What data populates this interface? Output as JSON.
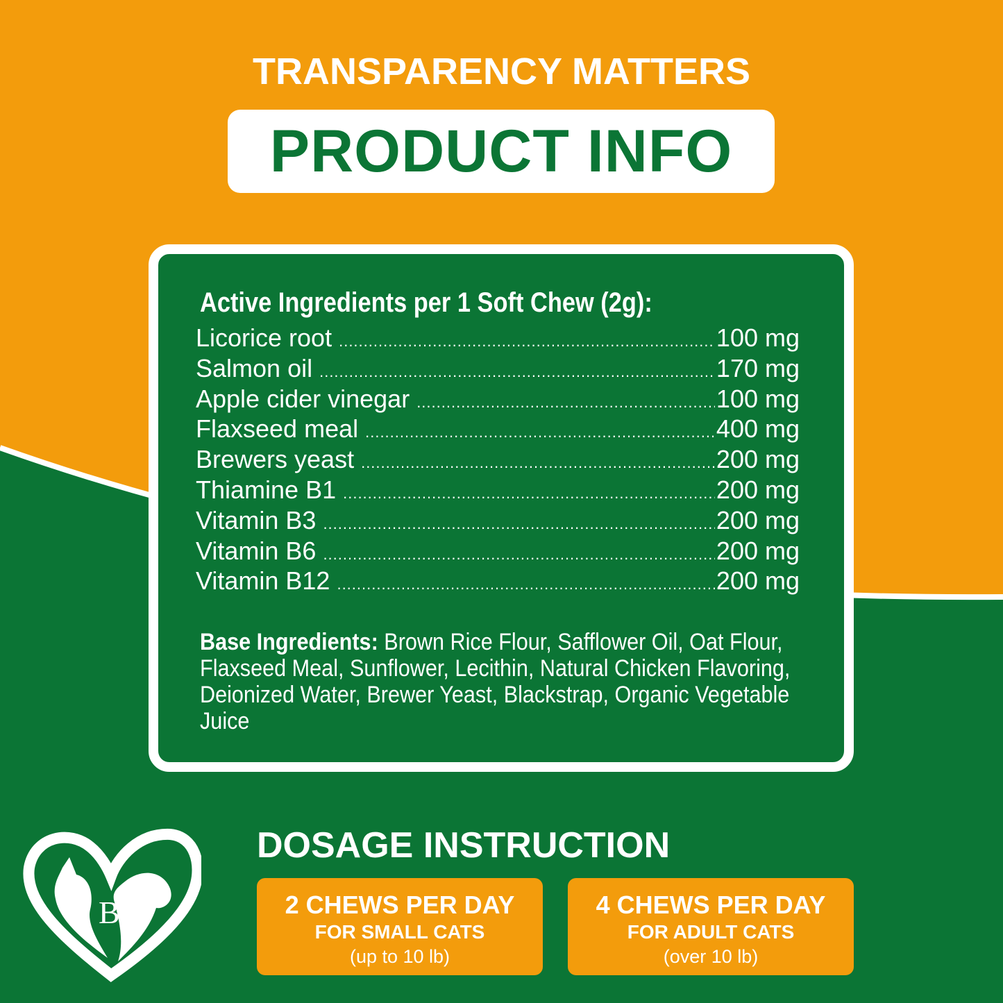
{
  "colors": {
    "orange": "#F39C0C",
    "green": "#0B7535",
    "white": "#FFFFFF"
  },
  "header": {
    "eyebrow": "TRANSPARENCY MATTERS",
    "title": "PRODUCT INFO"
  },
  "ingredients": {
    "heading": "Active Ingredients per 1 Soft Chew (2g):",
    "items": [
      {
        "name": "Licorice root",
        "amount": "100 mg"
      },
      {
        "name": "Salmon oil",
        "amount": "170 mg"
      },
      {
        "name": "Apple cider vinegar",
        "amount": "100 mg"
      },
      {
        "name": "Flaxseed meal",
        "amount": "400 mg"
      },
      {
        "name": "Brewers yeast",
        "amount": "200 mg"
      },
      {
        "name": "Thiamine B1",
        "amount": "200 mg"
      },
      {
        "name": "Vitamin B3",
        "amount": "200 mg"
      },
      {
        "name": "Vitamin B6",
        "amount": "200 mg"
      },
      {
        "name": "Vitamin B12",
        "amount": "200 mg"
      }
    ],
    "base_label": "Base Ingredients:",
    "base_text": "Brown Rice Flour, Safflower Oil, Oat Flour, Flaxseed Meal, Sunflower, Lecithin, Natural Chicken Flavoring, Deionized Water, Brewer Yeast, Blackstrap, Organic Vegetable Juice"
  },
  "dosage": {
    "title": "DOSAGE INSTRUCTION",
    "options": [
      {
        "line1": "2 CHEWS PER DAY",
        "line2": "FOR SMALL CATS",
        "line3": "(up to 10 lb)"
      },
      {
        "line1": "4 CHEWS PER DAY",
        "line2": "FOR ADULT CATS",
        "line3": "(over 10 lb)"
      }
    ]
  },
  "logo": {
    "icon": "heart-cat-dog-logo",
    "text": "BP"
  }
}
